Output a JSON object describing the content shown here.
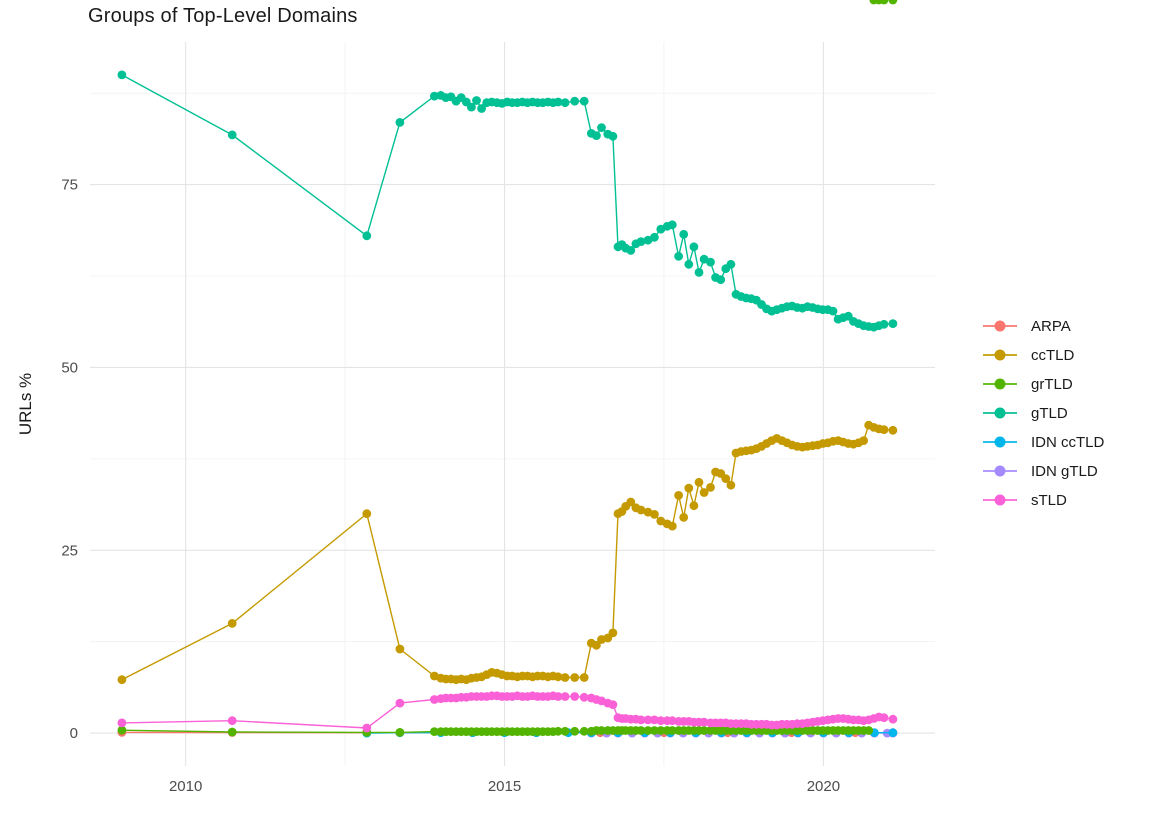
{
  "title": "Groups of Top-Level Domains",
  "axes": {
    "y_label": "URLs %",
    "y_tick_labels": [
      "0",
      "25",
      "50",
      "75"
    ],
    "x_tick_labels": [
      "2010",
      "2015",
      "2020"
    ]
  },
  "legend": {
    "items": [
      {
        "label": "ARPA",
        "color": "#F8766D"
      },
      {
        "label": "ccTLD",
        "color": "#C49A00"
      },
      {
        "label": "grTLD",
        "color": "#53B400"
      },
      {
        "label": "gTLD",
        "color": "#00C094"
      },
      {
        "label": "IDN ccTLD",
        "color": "#00B6EB"
      },
      {
        "label": "IDN gTLD",
        "color": "#A58AFF"
      },
      {
        "label": "sTLD",
        "color": "#FB61D7"
      }
    ]
  },
  "chart_data": {
    "type": "line",
    "title": "Groups of Top-Level Domains",
    "xlabel": "",
    "ylabel": "URLs %",
    "xlim": [
      2008.5,
      2021.75
    ],
    "ylim": [
      -4.5,
      94.5
    ],
    "grid": true,
    "legend_position": "right",
    "x_major": [
      2010,
      2015,
      2020
    ],
    "x_minor": [
      2012.5,
      2017.5
    ],
    "y_major": [
      0,
      25,
      50,
      75
    ],
    "y_minor": [
      12.5,
      37.5,
      62.5,
      87.5
    ],
    "x_shared": [
      2009.0,
      2010.73,
      2012.84,
      2013.36,
      2013.9,
      2014.0,
      2014.08,
      2014.16,
      2014.24,
      2014.32,
      2014.4,
      2014.48,
      2014.56,
      2014.64,
      2014.72,
      2014.8,
      2014.88,
      2014.96,
      2015.04,
      2015.12,
      2015.2,
      2015.28,
      2015.36,
      2015.44,
      2015.52,
      2015.6,
      2015.68,
      2015.76,
      2015.84,
      2015.95,
      2016.1,
      2016.25,
      2016.36,
      2016.44,
      2016.52,
      2016.62,
      2016.7,
      2016.78,
      2016.84,
      2016.9,
      2016.98,
      2017.06,
      2017.14,
      2017.25,
      2017.35,
      2017.45,
      2017.55,
      2017.63,
      2017.73,
      2017.81,
      2017.89,
      2017.97,
      2018.05,
      2018.13,
      2018.23,
      2018.31,
      2018.39,
      2018.47,
      2018.55,
      2018.63,
      2018.71,
      2018.79,
      2018.87,
      2018.95,
      2019.03,
      2019.11,
      2019.19,
      2019.27,
      2019.35,
      2019.43,
      2019.51,
      2019.59,
      2019.67,
      2019.75,
      2019.83,
      2019.91,
      2019.99,
      2020.07,
      2020.15,
      2020.23,
      2020.31,
      2020.39,
      2020.47,
      2020.55,
      2020.63,
      2020.71,
      2020.79,
      2020.87,
      2020.95,
      2021.09
    ],
    "draw_order": [
      "ARPA",
      "IDN gTLD",
      "IDN ccTLD",
      "grTLD",
      "ccTLD",
      "gTLD",
      "sTLD"
    ],
    "series": [
      {
        "name": "ARPA",
        "color": "#F8766D",
        "x": [
          2009.0,
          2010.73,
          2012.84,
          2013.36,
          2014.5,
          2015.5,
          2016.5,
          2017.5,
          2018.5,
          2019.5,
          2020.5,
          2021.09
        ],
        "y": [
          0.1,
          0.08,
          0.05,
          0.05,
          0.05,
          0.05,
          0.05,
          0.05,
          0.05,
          0.05,
          0.05,
          0.05
        ]
      },
      {
        "name": "ccTLD",
        "color": "#C49A00",
        "y": [
          7.3,
          15,
          30,
          11.5,
          7.8,
          7.5,
          7.4,
          7.4,
          7.3,
          7.4,
          7.3,
          7.5,
          7.6,
          7.7,
          8,
          8.3,
          8.2,
          8,
          7.8,
          7.8,
          7.7,
          7.8,
          7.8,
          7.7,
          7.8,
          7.8,
          7.7,
          7.8,
          7.7,
          7.6,
          7.6,
          7.6,
          12.3,
          12,
          12.8,
          13,
          13.7,
          30,
          30.3,
          31,
          31.6,
          30.8,
          30.5,
          30.2,
          29.9,
          29,
          28.6,
          28.3,
          32.5,
          29.5,
          33.5,
          31.1,
          34.3,
          32.9,
          33.6,
          35.7,
          35.5,
          34.8,
          33.9,
          38.3,
          38.5,
          38.6,
          38.7,
          38.9,
          39.2,
          39.6,
          40,
          40.3,
          40,
          39.7,
          39.4,
          39.2,
          39.1,
          39.2,
          39.3,
          39.4,
          39.6,
          39.7,
          39.9,
          40,
          39.8,
          39.6,
          39.5,
          39.7,
          40,
          42.1,
          41.8,
          41.6,
          41.5,
          41.4
        ]
      },
      {
        "name": "grTLD",
        "color": "#53B400",
        "y": [
          0.4,
          0.15,
          0.1,
          0.1,
          0.2,
          0.2,
          0.2,
          0.2,
          0.2,
          0.2,
          0.2,
          0.2,
          0.2,
          0.2,
          0.2,
          0.2,
          0.2,
          0.2,
          0.2,
          0.2,
          0.2,
          0.2,
          0.2,
          0.2,
          0.2,
          0.2,
          0.2,
          0.2,
          0.25,
          0.25,
          0.25,
          0.25,
          0.25,
          0.35,
          0.35,
          0.35,
          0.35,
          0.35,
          0.35,
          0.35,
          0.35,
          0.35,
          0.35,
          0.35,
          0.35,
          0.35,
          0.35,
          0.35,
          0.35,
          0.35,
          0.35,
          0.35,
          0.35,
          0.35,
          0.35,
          0.35,
          0.35,
          0.35,
          0.35,
          0.35,
          0.35,
          0.35,
          0.35,
          0.35,
          0.35,
          0.35,
          0.35,
          0.35,
          0.35,
          0.35,
          0.35,
          0.35,
          0.35,
          0.35,
          0.35,
          0.35,
          0.35,
          0.35,
          0.35,
          0.35,
          0.35,
          0.35,
          0.35,
          0.35,
          0.35,
          0.35
        ]
      },
      {
        "name": "gTLD",
        "color": "#00C094",
        "y": [
          90,
          81.8,
          68,
          83.5,
          87.1,
          87.2,
          86.9,
          87,
          86.4,
          86.9,
          86.3,
          85.6,
          86.5,
          85.4,
          86.2,
          86.3,
          86.2,
          86.1,
          86.3,
          86.2,
          86.2,
          86.3,
          86.2,
          86.3,
          86.2,
          86.2,
          86.3,
          86.2,
          86.3,
          86.2,
          86.4,
          86.4,
          82,
          81.7,
          82.8,
          81.9,
          81.6,
          66.5,
          66.8,
          66.3,
          66,
          66.9,
          67.2,
          67.4,
          67.8,
          68.9,
          69.3,
          69.5,
          65.2,
          68.2,
          64.1,
          66.5,
          63,
          64.8,
          64.4,
          62.3,
          62,
          63.5,
          64.1,
          60,
          59.7,
          59.5,
          59.4,
          59.2,
          58.6,
          58,
          57.7,
          57.9,
          58.1,
          58.3,
          58.4,
          58.2,
          58.1,
          58.3,
          58.2,
          58,
          57.9,
          57.9,
          57.7,
          56.6,
          56.8,
          57,
          56.3,
          56,
          55.7,
          55.6,
          55.5,
          55.7,
          55.9,
          56
        ]
      },
      {
        "name": "IDN ccTLD",
        "color": "#00B6EB",
        "x": [
          2012.84,
          2013.36,
          2014.0,
          2014.5,
          2015.0,
          2015.5,
          2016.0,
          2016.36,
          2016.78,
          2017.2,
          2017.6,
          2018.0,
          2018.4,
          2018.8,
          2019.2,
          2019.6,
          2020.0,
          2020.4,
          2020.8,
          2021.09
        ],
        "y": [
          0.0,
          0.05,
          0.05,
          0.05,
          0.05,
          0.05,
          0.05,
          0.05,
          0.05,
          0.05,
          0.05,
          0.05,
          0.05,
          0.05,
          0.05,
          0.05,
          0.05,
          0.05,
          0.05,
          0.05
        ]
      },
      {
        "name": "IDN gTLD",
        "color": "#A58AFF",
        "x": [
          2016.36,
          2016.6,
          2016.78,
          2017.0,
          2017.2,
          2017.4,
          2017.6,
          2017.8,
          2018.0,
          2018.2,
          2018.4,
          2018.6,
          2018.8,
          2019.0,
          2019.2,
          2019.4,
          2019.6,
          2019.8,
          2020.0,
          2020.2,
          2020.4,
          2020.6,
          2020.8,
          2021.0,
          2021.09
        ],
        "y": [
          0,
          0,
          0,
          0,
          0,
          0,
          0,
          0,
          0,
          0,
          0,
          0,
          0,
          0,
          0,
          0,
          0,
          0,
          0,
          0,
          0,
          0,
          0,
          0,
          0
        ]
      },
      {
        "name": "sTLD",
        "color": "#FB61D7",
        "y": [
          1.4,
          1.7,
          0.7,
          4.1,
          4.6,
          4.7,
          4.8,
          4.8,
          4.8,
          4.9,
          4.9,
          5,
          5,
          5,
          5,
          5.1,
          5.1,
          5,
          5,
          5,
          5.1,
          5,
          5,
          5.1,
          5,
          5,
          5,
          5.1,
          5,
          5,
          5,
          4.9,
          4.8,
          4.6,
          4.4,
          4.1,
          3.9,
          2.1,
          2,
          2,
          1.9,
          1.9,
          1.8,
          1.8,
          1.8,
          1.7,
          1.7,
          1.7,
          1.6,
          1.6,
          1.6,
          1.5,
          1.5,
          1.5,
          1.4,
          1.4,
          1.4,
          1.4,
          1.3,
          1.3,
          1.3,
          1.3,
          1.2,
          1.2,
          1.2,
          1.2,
          1.1,
          1.1,
          1.2,
          1.2,
          1.2,
          1.3,
          1.3,
          1.4,
          1.5,
          1.6,
          1.7,
          1.8,
          1.9,
          2,
          2,
          1.9,
          1.8,
          1.8,
          1.7,
          1.8,
          2,
          2.2,
          2.1,
          1.9
        ]
      }
    ]
  }
}
